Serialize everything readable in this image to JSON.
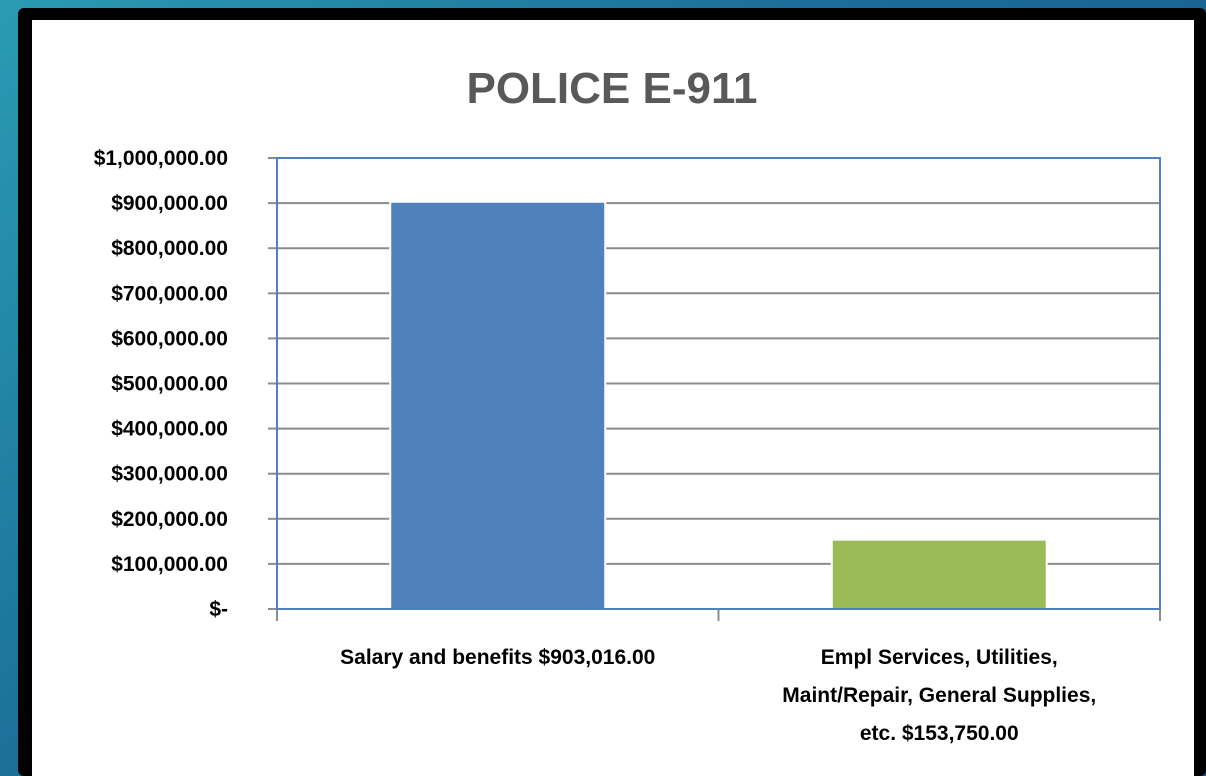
{
  "chart_data": {
    "type": "bar",
    "title": "POLICE E-911",
    "xlabel": "",
    "ylabel": "",
    "categories": [
      [
        "Salary and benefits  $903,016.00"
      ],
      [
        "Empl Services, Utilities,",
        "Maint/Repair, General Supplies,",
        "etc.  $153,750.00"
      ]
    ],
    "values": [
      903016,
      153750
    ],
    "bar_colors": [
      "#4f81bd",
      "#9bbb59"
    ],
    "ylim": [
      0,
      1000000
    ],
    "yticks": [
      0,
      100000,
      200000,
      300000,
      400000,
      500000,
      600000,
      700000,
      800000,
      900000,
      1000000
    ],
    "ytick_labels": [
      "$-",
      "$100,000.00",
      "$200,000.00",
      "$300,000.00",
      "$400,000.00",
      "$500,000.00",
      "$600,000.00",
      "$700,000.00",
      "$800,000.00",
      "$900,000.00",
      "$1,000,000.00"
    ],
    "grid": true,
    "legend": "none",
    "plot_border_color": "#4f81bd"
  }
}
